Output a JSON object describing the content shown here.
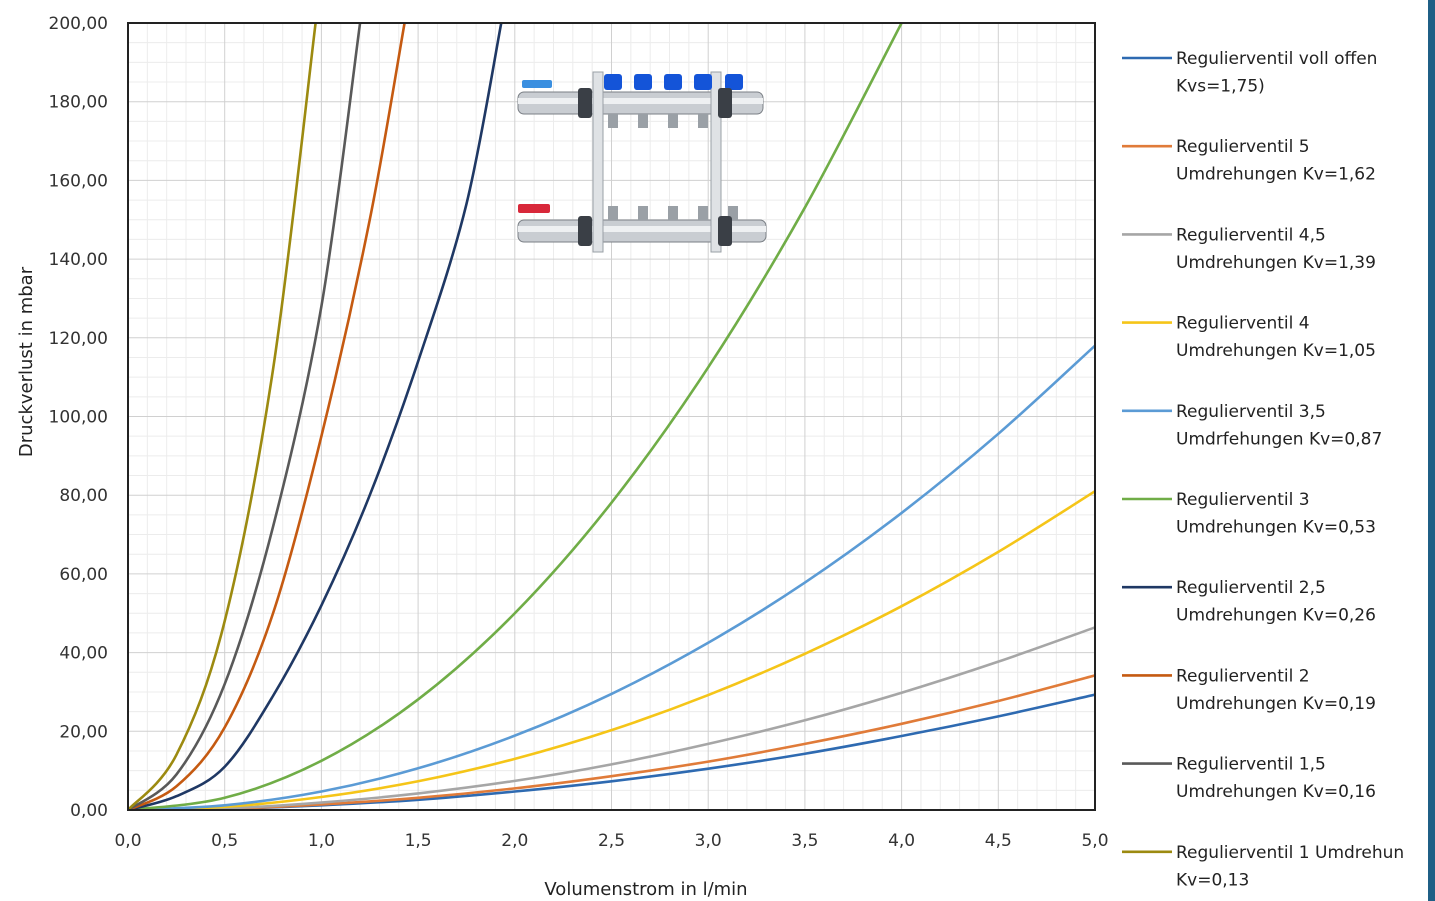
{
  "chart_data": {
    "type": "line",
    "title": "",
    "xlabel": "Volumenstrom in l/min",
    "ylabel": "Druckverlust in mbar",
    "xlim": [
      0,
      5
    ],
    "ylim": [
      0,
      200
    ],
    "grid": true,
    "legend_position": "right",
    "x_tick_labels": [
      "0,0",
      "0,5",
      "1,0",
      "1,5",
      "2,0",
      "2,5",
      "3,0",
      "3,5",
      "4,0",
      "4,5",
      "5,0"
    ],
    "y_tick_labels": [
      "0,00",
      "20,00",
      "40,00",
      "60,00",
      "80,00",
      "100,00",
      "120,00",
      "140,00",
      "160,00",
      "180,00",
      "200,00"
    ],
    "series": [
      {
        "name": "Regulierventil voll offen Kvs=1,75)",
        "legend_lines": [
          "Regulierventil voll offen",
          "Kvs=1,75)"
        ],
        "color": "#2e6ab1",
        "x": [
          0,
          0.5,
          1,
          1.5,
          2,
          2.5,
          3,
          3.5,
          4,
          4.5,
          5
        ],
        "y": [
          0,
          0.3,
          1.2,
          2.6,
          4.7,
          7.3,
          10.5,
          14.3,
          18.8,
          23.8,
          29.3
        ]
      },
      {
        "name": "Regulierventil 5 Umdrehungen Kv=1,62",
        "legend_lines": [
          "Regulierventil 5",
          "Umdrehungen Kv=1,62"
        ],
        "color": "#e07b39",
        "x": [
          0,
          0.5,
          1,
          1.5,
          2,
          2.5,
          3,
          3.5,
          4,
          4.5,
          5
        ],
        "y": [
          0,
          0.3,
          1.4,
          3.1,
          5.5,
          8.6,
          12.3,
          16.8,
          21.9,
          27.7,
          34.2
        ]
      },
      {
        "name": "Regulierventil 4,5 Umdrehungen Kv=1,39",
        "legend_lines": [
          "Regulierventil 4,5",
          "Umdrehungen Kv=1,39"
        ],
        "color": "#a6a6a6",
        "x": [
          0,
          0.5,
          1,
          1.5,
          2,
          2.5,
          3,
          3.5,
          4,
          4.5,
          5
        ],
        "y": [
          0,
          0.4,
          1.9,
          4.2,
          7.4,
          11.6,
          16.8,
          22.8,
          29.8,
          37.7,
          46.4
        ]
      },
      {
        "name": "Regulierventil 4 Umdrehungen Kv=1,05",
        "legend_lines": [
          "Regulierventil 4",
          "Umdrehungen Kv=1,05"
        ],
        "color": "#f5c518",
        "x": [
          0,
          0.5,
          1,
          1.5,
          2,
          2.5,
          3,
          3.5,
          4,
          4.5,
          5
        ],
        "y": [
          0,
          0.8,
          3.3,
          7.3,
          13.0,
          20.3,
          29.2,
          39.7,
          51.8,
          65.6,
          81.0
        ]
      },
      {
        "name": "Regulierventil 3,5 Umdrfehungen Kv=0,87",
        "legend_lines": [
          "Regulierventil 3,5",
          "Umdrfehungen Kv=0,87"
        ],
        "color": "#5b9bd5",
        "x": [
          0,
          0.5,
          1,
          1.5,
          2,
          2.5,
          3,
          3.5,
          4,
          4.5,
          5
        ],
        "y": [
          0,
          1.2,
          4.7,
          10.6,
          18.9,
          29.5,
          42.5,
          57.8,
          75.5,
          95.6,
          118.0
        ]
      },
      {
        "name": "Regulierventil 3 Umdrehungen Kv=0,53",
        "legend_lines": [
          "Regulierventil 3",
          "Umdrehungen Kv=0,53"
        ],
        "color": "#70ad47",
        "x": [
          0,
          0.5,
          1,
          1.5,
          2,
          2.5,
          3,
          3.5,
          4
        ],
        "y": [
          0,
          3.1,
          12.5,
          28.1,
          50.0,
          78.1,
          112.5,
          153.1,
          200.0
        ]
      },
      {
        "name": "Regulierventil 2,5 Umdrehungen Kv=0,26",
        "legend_lines": [
          "Regulierventil 2,5",
          "Umdrehungen Kv=0,26"
        ],
        "color": "#1f3864",
        "x": [
          0,
          0.25,
          0.5,
          0.75,
          1,
          1.25,
          1.5,
          1.75,
          1.93
        ],
        "y": [
          0,
          3.5,
          11.0,
          29.0,
          52.0,
          80.0,
          114.0,
          154.0,
          200.0
        ]
      },
      {
        "name": "Regulierventil 2 Umdrehungen Kv=0,19",
        "legend_lines": [
          "Regulierventil 2",
          "Umdrehungen Kv=0,19"
        ],
        "color": "#c55a11",
        "x": [
          0,
          0.25,
          0.5,
          0.75,
          1,
          1.25,
          1.43
        ],
        "y": [
          0,
          6.0,
          21.0,
          50.0,
          95.0,
          150.0,
          200.0
        ]
      },
      {
        "name": "Regulierventil 1,5 Umdrehungen Kv=0,16",
        "legend_lines": [
          "Regulierventil 1,5",
          "Umdrehungen Kv=0,16"
        ],
        "color": "#595959",
        "x": [
          0,
          0.25,
          0.5,
          0.75,
          1,
          1.2
        ],
        "y": [
          0,
          9.0,
          32.0,
          72.0,
          128.0,
          200.0
        ]
      },
      {
        "name": "Regulierventil 1 Umdrehun Kv=0,13",
        "legend_lines": [
          "Regulierventil 1 Umdrehun",
          "Kv=0,13"
        ],
        "color": "#9c8a10",
        "x": [
          0,
          0.25,
          0.5,
          0.75,
          0.97
        ],
        "y": [
          0,
          14.0,
          48.0,
          112.0,
          200.0
        ]
      }
    ]
  }
}
